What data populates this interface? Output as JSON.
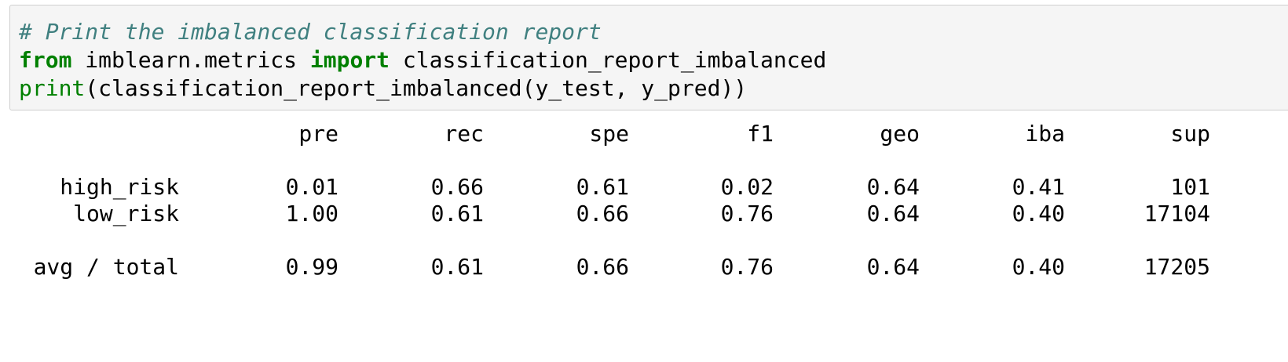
{
  "code_cell": {
    "comment": "# Print the imbalanced classification report",
    "line2": {
      "kw_from": "from",
      "module": " imblearn.metrics ",
      "kw_import": "import",
      "name": " classification_report_imbalanced"
    },
    "line3": {
      "builtin_print": "print",
      "rest": "(classification_report_imbalanced(y_test, y_pred))"
    }
  },
  "report": {
    "headers": [
      "pre",
      "rec",
      "spe",
      "f1",
      "geo",
      "iba",
      "sup"
    ],
    "rows": [
      {
        "label": "high_risk",
        "values": [
          "0.01",
          "0.66",
          "0.61",
          "0.02",
          "0.64",
          "0.41",
          "101"
        ]
      },
      {
        "label": "low_risk",
        "values": [
          "1.00",
          "0.61",
          "0.66",
          "0.76",
          "0.64",
          "0.40",
          "17104"
        ]
      }
    ],
    "total": {
      "label": "avg / total",
      "values": [
        "0.99",
        "0.61",
        "0.66",
        "0.76",
        "0.64",
        "0.40",
        "17205"
      ]
    }
  }
}
